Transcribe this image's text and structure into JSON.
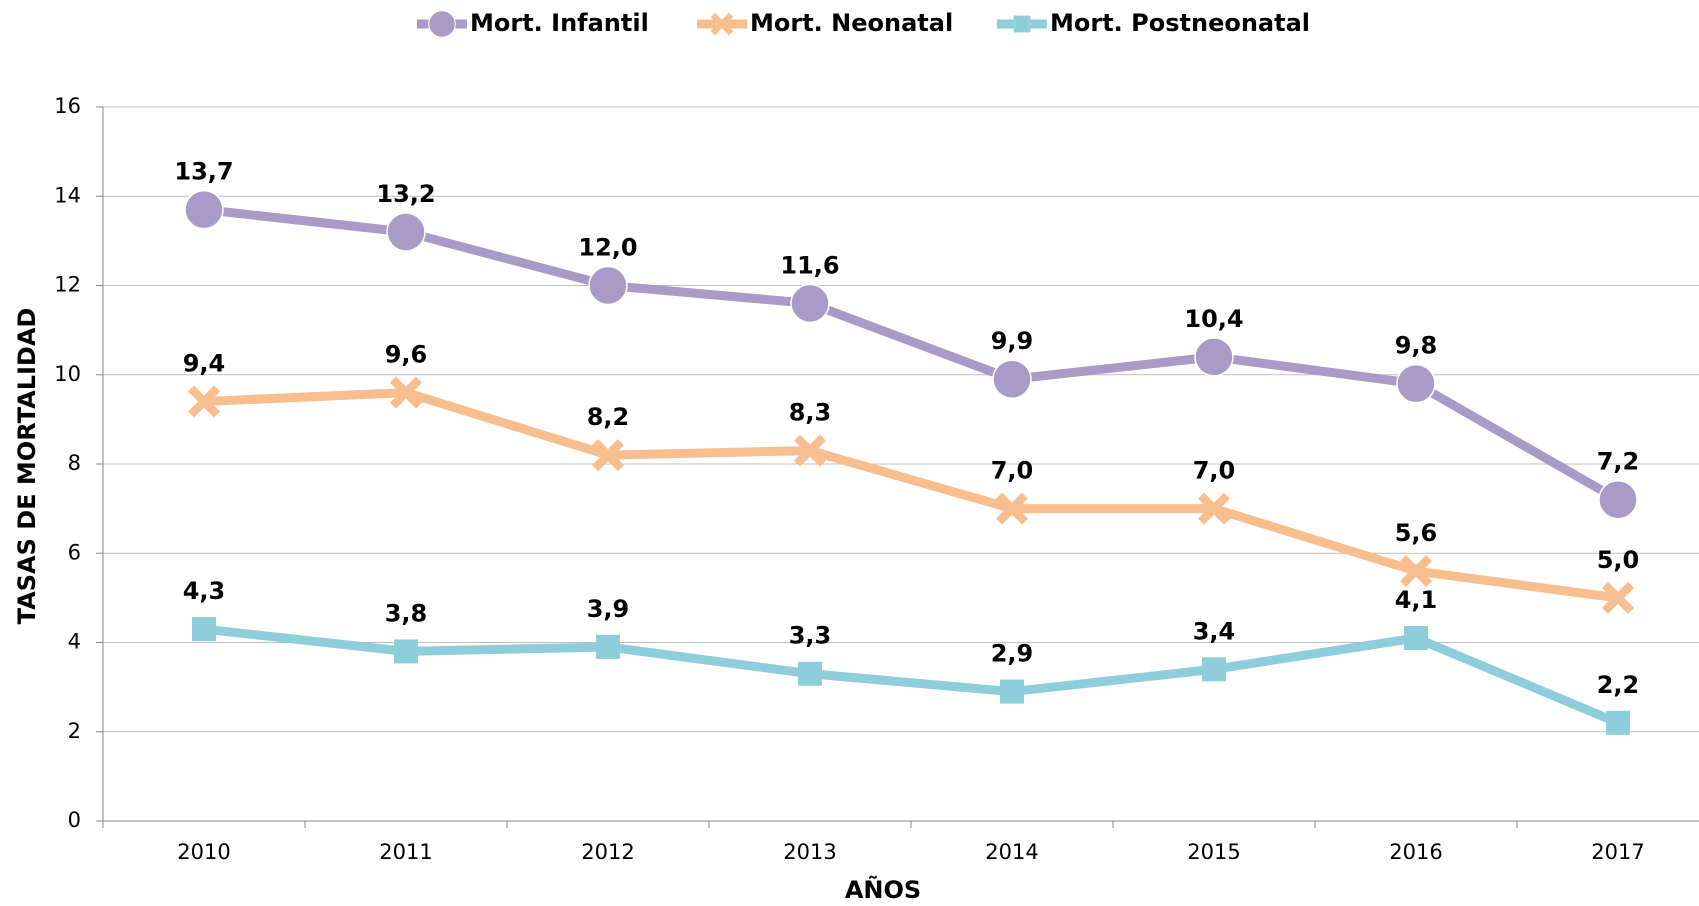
{
  "chart_data": {
    "type": "line",
    "categories": [
      "2010",
      "2011",
      "2012",
      "2013",
      "2014",
      "2015",
      "2016",
      "2017"
    ],
    "series": [
      {
        "name": "Mort. Infantil",
        "color": "#a99bc7",
        "marker": "circle",
        "values": [
          13.7,
          13.2,
          12.0,
          11.6,
          9.9,
          10.4,
          9.8,
          7.2
        ],
        "value_labels": [
          "13,7",
          "13,2",
          "12,0",
          "11,6",
          "9,9",
          "10,4",
          "9,8",
          "7,2"
        ]
      },
      {
        "name": "Mort. Neonatal",
        "color": "#f9be8e",
        "marker": "x",
        "values": [
          9.4,
          9.6,
          8.2,
          8.3,
          7.0,
          7.0,
          5.6,
          5.0
        ],
        "value_labels": [
          "9,4",
          "9,6",
          "8,2",
          "8,3",
          "7,0",
          "7,0",
          "5,6",
          "5,0"
        ]
      },
      {
        "name": "Mort. Postneonatal",
        "color": "#8ecedb",
        "marker": "square",
        "values": [
          4.3,
          3.8,
          3.9,
          3.3,
          2.9,
          3.4,
          4.1,
          2.2
        ],
        "value_labels": [
          "4,3",
          "3,8",
          "3,9",
          "3,3",
          "2,9",
          "3,4",
          "4,1",
          "2,2"
        ]
      }
    ],
    "xlabel": "AÑOS",
    "ylabel": "TASAS DE MORTALIDAD",
    "ylim": [
      0,
      16
    ],
    "yticks": [
      0,
      2,
      4,
      6,
      8,
      10,
      12,
      14,
      16
    ],
    "grid": true,
    "legend": "top"
  }
}
